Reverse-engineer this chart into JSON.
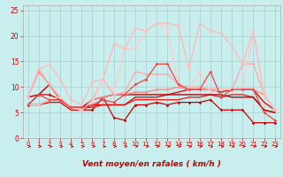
{
  "xlabel": "Vent moyen/en rafales ( km/h )",
  "bg_color": "#c8eeee",
  "grid_color": "#aacccc",
  "xlim": [
    -0.5,
    23.5
  ],
  "ylim": [
    0,
    26
  ],
  "yticks": [
    0,
    5,
    10,
    15,
    20,
    25
  ],
  "xticks": [
    0,
    1,
    2,
    3,
    4,
    5,
    6,
    7,
    8,
    9,
    10,
    11,
    12,
    13,
    14,
    15,
    16,
    17,
    18,
    19,
    20,
    21,
    22,
    23
  ],
  "lines": [
    {
      "x": [
        0,
        1,
        2,
        3,
        4,
        5,
        6,
        7,
        8,
        9,
        10,
        11,
        12,
        13,
        14,
        15,
        16,
        17,
        18,
        19,
        20,
        21,
        22,
        23
      ],
      "y": [
        6.5,
        8.5,
        8.5,
        7.5,
        6.0,
        5.5,
        5.5,
        8.0,
        4.0,
        3.5,
        6.5,
        6.5,
        7.0,
        6.5,
        7.0,
        7.0,
        7.0,
        7.5,
        5.5,
        5.5,
        5.5,
        3.0,
        3.0,
        3.0
      ],
      "color": "#cc0000",
      "lw": 0.9,
      "marker": "D",
      "ms": 1.8
    },
    {
      "x": [
        0,
        1,
        2,
        3,
        4,
        5,
        6,
        7,
        8,
        9,
        10,
        11,
        12,
        13,
        14,
        15,
        16,
        17,
        18,
        19,
        20,
        21,
        22,
        23
      ],
      "y": [
        6.5,
        6.5,
        7.5,
        7.5,
        6.0,
        6.0,
        6.0,
        6.5,
        6.5,
        6.5,
        7.5,
        7.5,
        7.5,
        7.5,
        7.5,
        8.0,
        8.0,
        8.5,
        8.0,
        8.5,
        8.5,
        8.0,
        5.5,
        5.0
      ],
      "color": "#ee2222",
      "lw": 1.0,
      "marker": null,
      "ms": 0
    },
    {
      "x": [
        0,
        1,
        2,
        3,
        4,
        5,
        6,
        7,
        8,
        9,
        10,
        11,
        12,
        13,
        14,
        15,
        16,
        17,
        18,
        19,
        20,
        21,
        22,
        23
      ],
      "y": [
        6.5,
        6.5,
        7.0,
        7.0,
        5.5,
        5.5,
        6.5,
        6.5,
        6.5,
        6.5,
        8.0,
        8.0,
        8.0,
        8.5,
        9.0,
        9.5,
        9.5,
        9.5,
        9.0,
        9.5,
        9.5,
        9.5,
        7.0,
        5.5
      ],
      "color": "#dd1111",
      "lw": 1.0,
      "marker": null,
      "ms": 0
    },
    {
      "x": [
        0,
        1,
        2,
        3,
        4,
        5,
        6,
        7,
        8,
        9,
        10,
        11,
        12,
        13,
        14,
        15,
        16,
        17,
        18,
        19,
        20,
        21,
        22,
        23
      ],
      "y": [
        8.0,
        8.5,
        10.5,
        7.5,
        6.0,
        6.0,
        7.5,
        8.0,
        8.5,
        8.5,
        8.5,
        8.5,
        8.5,
        8.5,
        8.5,
        8.5,
        8.5,
        8.5,
        8.5,
        8.0,
        8.0,
        8.0,
        5.5,
        5.0
      ],
      "color": "#bb0000",
      "lw": 1.0,
      "marker": null,
      "ms": 0
    },
    {
      "x": [
        0,
        1,
        2,
        3,
        4,
        5,
        6,
        7,
        8,
        9,
        10,
        11,
        12,
        13,
        14,
        15,
        16,
        17,
        18,
        19,
        20,
        21,
        22,
        23
      ],
      "y": [
        8.0,
        13.0,
        10.5,
        7.5,
        6.0,
        5.5,
        7.5,
        8.0,
        8.5,
        8.5,
        9.0,
        9.0,
        9.5,
        9.5,
        10.0,
        9.5,
        9.5,
        9.5,
        9.5,
        9.5,
        9.5,
        9.5,
        8.5,
        5.5
      ],
      "color": "#ff8888",
      "lw": 1.0,
      "marker": "D",
      "ms": 1.8
    },
    {
      "x": [
        0,
        1,
        2,
        3,
        4,
        5,
        6,
        7,
        8,
        9,
        10,
        11,
        12,
        13,
        14,
        15,
        16,
        17,
        18,
        19,
        20,
        21,
        22,
        23
      ],
      "y": [
        8.0,
        13.5,
        10.5,
        8.0,
        6.0,
        5.5,
        7.5,
        11.5,
        8.5,
        9.0,
        13.0,
        12.5,
        12.5,
        12.5,
        10.5,
        10.0,
        10.0,
        9.5,
        9.5,
        9.5,
        14.5,
        14.5,
        8.5,
        5.5
      ],
      "color": "#ffaaaa",
      "lw": 1.0,
      "marker": "D",
      "ms": 1.8
    },
    {
      "x": [
        0,
        1,
        2,
        3,
        4,
        5,
        6,
        7,
        8,
        9,
        10,
        11,
        12,
        13,
        14,
        15,
        16,
        17,
        18,
        19,
        20,
        21,
        22,
        23
      ],
      "y": [
        6.5,
        6.5,
        7.5,
        8.0,
        6.0,
        5.5,
        7.0,
        11.5,
        9.0,
        17.5,
        17.5,
        21.0,
        22.5,
        21.5,
        10.5,
        9.5,
        13.0,
        9.0,
        9.5,
        9.5,
        9.5,
        21.0,
        8.5,
        5.5
      ],
      "color": "#ffcccc",
      "lw": 1.0,
      "marker": "D",
      "ms": 1.8
    },
    {
      "x": [
        0,
        1,
        2,
        3,
        4,
        5,
        6,
        7,
        8,
        9,
        10,
        11,
        12,
        13,
        14,
        15,
        16,
        17,
        18,
        19,
        20,
        21,
        22,
        23
      ],
      "y": [
        8.0,
        13.5,
        14.5,
        11.5,
        7.5,
        6.5,
        11.0,
        11.5,
        18.5,
        17.5,
        21.5,
        21.0,
        22.5,
        22.5,
        22.0,
        13.5,
        22.5,
        21.0,
        20.5,
        18.0,
        14.5,
        21.0,
        8.5,
        5.5
      ],
      "color": "#ffbbbb",
      "lw": 1.0,
      "marker": "D",
      "ms": 1.8
    },
    {
      "x": [
        0,
        1,
        2,
        3,
        4,
        5,
        6,
        7,
        8,
        9,
        10,
        11,
        12,
        13,
        14,
        15,
        16,
        17,
        18,
        19,
        20,
        21,
        22,
        23
      ],
      "y": [
        6.5,
        8.5,
        7.5,
        7.5,
        6.0,
        6.0,
        6.5,
        7.5,
        7.0,
        8.5,
        10.5,
        11.5,
        14.5,
        14.5,
        10.5,
        9.5,
        9.5,
        13.0,
        8.0,
        9.5,
        9.5,
        9.5,
        5.0,
        3.5
      ],
      "color": "#ee4444",
      "lw": 0.9,
      "marker": "D",
      "ms": 1.8
    }
  ],
  "arrow_color": "#cc0000"
}
